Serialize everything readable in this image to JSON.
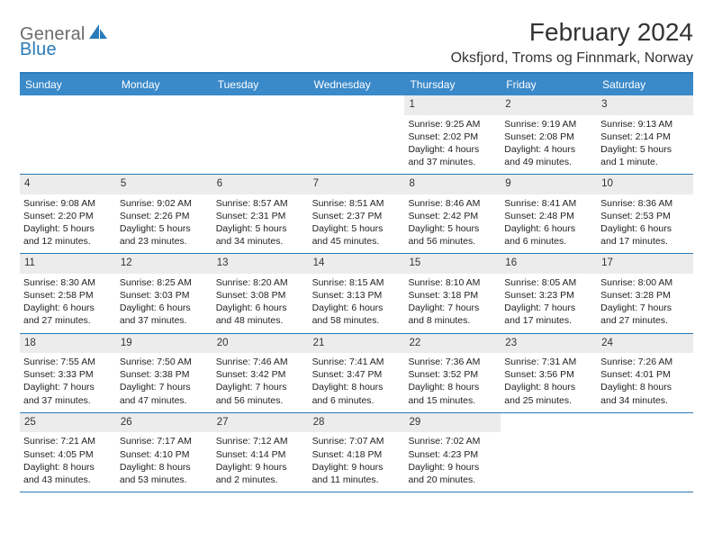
{
  "logo": {
    "word1": "General",
    "word2": "Blue"
  },
  "title": "February 2024",
  "location": "Oksfjord, Troms og Finnmark, Norway",
  "colors": {
    "header_bar": "#3a89c9",
    "border": "#2a7ab8",
    "daynum_bg": "#ececec",
    "logo_gray": "#6b6b6b",
    "logo_blue": "#2a7ab8"
  },
  "weekdays": [
    "Sunday",
    "Monday",
    "Tuesday",
    "Wednesday",
    "Thursday",
    "Friday",
    "Saturday"
  ],
  "weeks": [
    [
      null,
      null,
      null,
      null,
      {
        "n": "1",
        "sr": "9:25 AM",
        "ss": "2:02 PM",
        "d1": "4 hours",
        "d2": "and 37 minutes."
      },
      {
        "n": "2",
        "sr": "9:19 AM",
        "ss": "2:08 PM",
        "d1": "4 hours",
        "d2": "and 49 minutes."
      },
      {
        "n": "3",
        "sr": "9:13 AM",
        "ss": "2:14 PM",
        "d1": "5 hours",
        "d2": "and 1 minute."
      }
    ],
    [
      {
        "n": "4",
        "sr": "9:08 AM",
        "ss": "2:20 PM",
        "d1": "5 hours",
        "d2": "and 12 minutes."
      },
      {
        "n": "5",
        "sr": "9:02 AM",
        "ss": "2:26 PM",
        "d1": "5 hours",
        "d2": "and 23 minutes."
      },
      {
        "n": "6",
        "sr": "8:57 AM",
        "ss": "2:31 PM",
        "d1": "5 hours",
        "d2": "and 34 minutes."
      },
      {
        "n": "7",
        "sr": "8:51 AM",
        "ss": "2:37 PM",
        "d1": "5 hours",
        "d2": "and 45 minutes."
      },
      {
        "n": "8",
        "sr": "8:46 AM",
        "ss": "2:42 PM",
        "d1": "5 hours",
        "d2": "and 56 minutes."
      },
      {
        "n": "9",
        "sr": "8:41 AM",
        "ss": "2:48 PM",
        "d1": "6 hours",
        "d2": "and 6 minutes."
      },
      {
        "n": "10",
        "sr": "8:36 AM",
        "ss": "2:53 PM",
        "d1": "6 hours",
        "d2": "and 17 minutes."
      }
    ],
    [
      {
        "n": "11",
        "sr": "8:30 AM",
        "ss": "2:58 PM",
        "d1": "6 hours",
        "d2": "and 27 minutes."
      },
      {
        "n": "12",
        "sr": "8:25 AM",
        "ss": "3:03 PM",
        "d1": "6 hours",
        "d2": "and 37 minutes."
      },
      {
        "n": "13",
        "sr": "8:20 AM",
        "ss": "3:08 PM",
        "d1": "6 hours",
        "d2": "and 48 minutes."
      },
      {
        "n": "14",
        "sr": "8:15 AM",
        "ss": "3:13 PM",
        "d1": "6 hours",
        "d2": "and 58 minutes."
      },
      {
        "n": "15",
        "sr": "8:10 AM",
        "ss": "3:18 PM",
        "d1": "7 hours",
        "d2": "and 8 minutes."
      },
      {
        "n": "16",
        "sr": "8:05 AM",
        "ss": "3:23 PM",
        "d1": "7 hours",
        "d2": "and 17 minutes."
      },
      {
        "n": "17",
        "sr": "8:00 AM",
        "ss": "3:28 PM",
        "d1": "7 hours",
        "d2": "and 27 minutes."
      }
    ],
    [
      {
        "n": "18",
        "sr": "7:55 AM",
        "ss": "3:33 PM",
        "d1": "7 hours",
        "d2": "and 37 minutes."
      },
      {
        "n": "19",
        "sr": "7:50 AM",
        "ss": "3:38 PM",
        "d1": "7 hours",
        "d2": "and 47 minutes."
      },
      {
        "n": "20",
        "sr": "7:46 AM",
        "ss": "3:42 PM",
        "d1": "7 hours",
        "d2": "and 56 minutes."
      },
      {
        "n": "21",
        "sr": "7:41 AM",
        "ss": "3:47 PM",
        "d1": "8 hours",
        "d2": "and 6 minutes."
      },
      {
        "n": "22",
        "sr": "7:36 AM",
        "ss": "3:52 PM",
        "d1": "8 hours",
        "d2": "and 15 minutes."
      },
      {
        "n": "23",
        "sr": "7:31 AM",
        "ss": "3:56 PM",
        "d1": "8 hours",
        "d2": "and 25 minutes."
      },
      {
        "n": "24",
        "sr": "7:26 AM",
        "ss": "4:01 PM",
        "d1": "8 hours",
        "d2": "and 34 minutes."
      }
    ],
    [
      {
        "n": "25",
        "sr": "7:21 AM",
        "ss": "4:05 PM",
        "d1": "8 hours",
        "d2": "and 43 minutes."
      },
      {
        "n": "26",
        "sr": "7:17 AM",
        "ss": "4:10 PM",
        "d1": "8 hours",
        "d2": "and 53 minutes."
      },
      {
        "n": "27",
        "sr": "7:12 AM",
        "ss": "4:14 PM",
        "d1": "9 hours",
        "d2": "and 2 minutes."
      },
      {
        "n": "28",
        "sr": "7:07 AM",
        "ss": "4:18 PM",
        "d1": "9 hours",
        "d2": "and 11 minutes."
      },
      {
        "n": "29",
        "sr": "7:02 AM",
        "ss": "4:23 PM",
        "d1": "9 hours",
        "d2": "and 20 minutes."
      },
      null,
      null
    ]
  ]
}
